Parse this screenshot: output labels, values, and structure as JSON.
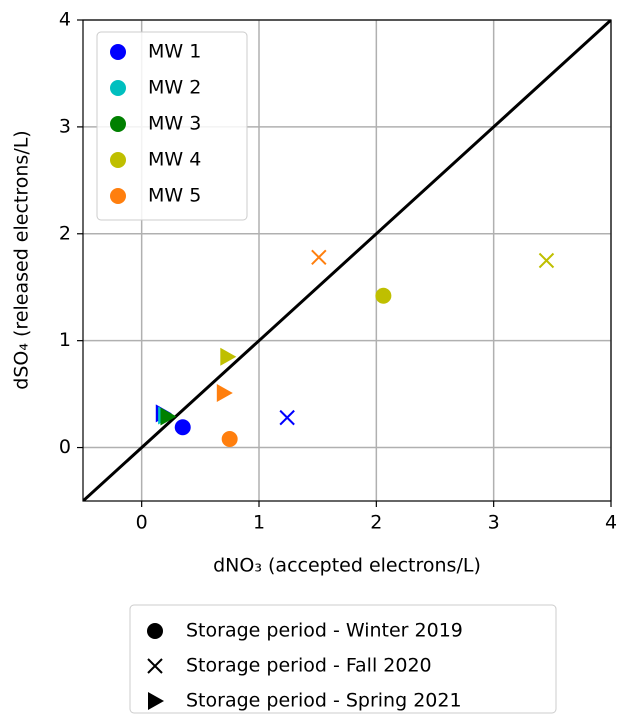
{
  "chart_data": {
    "type": "scatter",
    "xlabel": "dNO₃ (accepted electrons/L)",
    "ylabel": "dSO₄ (released electrons/L)",
    "xlim": [
      -0.5,
      4
    ],
    "ylim": [
      -0.5,
      4
    ],
    "xticks": [
      0,
      1,
      2,
      3,
      4
    ],
    "yticks": [
      0,
      1,
      2,
      3,
      4
    ],
    "grid": true,
    "identity_line": true,
    "legend": "upper left",
    "periods": [
      {
        "name": "Storage period - Winter 2019",
        "marker": "circle"
      },
      {
        "name": "Storage period - Fall 2020",
        "marker": "x"
      },
      {
        "name": "Storage period - Spring 2021",
        "marker": "triangle"
      }
    ],
    "series": [
      {
        "name": "MW 1",
        "color": "#0000ff",
        "x": [
          0.35,
          1.24,
          0.18
        ],
        "values": [
          0.19,
          0.28,
          0.32
        ]
      },
      {
        "name": "MW 2",
        "color": "#00bfbf",
        "x": [
          null,
          null,
          0.2
        ],
        "values": [
          null,
          null,
          0.3
        ]
      },
      {
        "name": "MW 3",
        "color": "#008000",
        "x": [
          null,
          null,
          0.22
        ],
        "values": [
          null,
          null,
          0.29
        ]
      },
      {
        "name": "MW 4",
        "color": "#bfbf00",
        "x": [
          2.06,
          3.45,
          0.73
        ],
        "values": [
          1.42,
          1.75,
          0.85
        ]
      },
      {
        "name": "MW 5",
        "color": "#ff7f0e",
        "x": [
          0.75,
          1.51,
          0.7
        ],
        "values": [
          0.08,
          1.78,
          0.51
        ]
      }
    ]
  }
}
